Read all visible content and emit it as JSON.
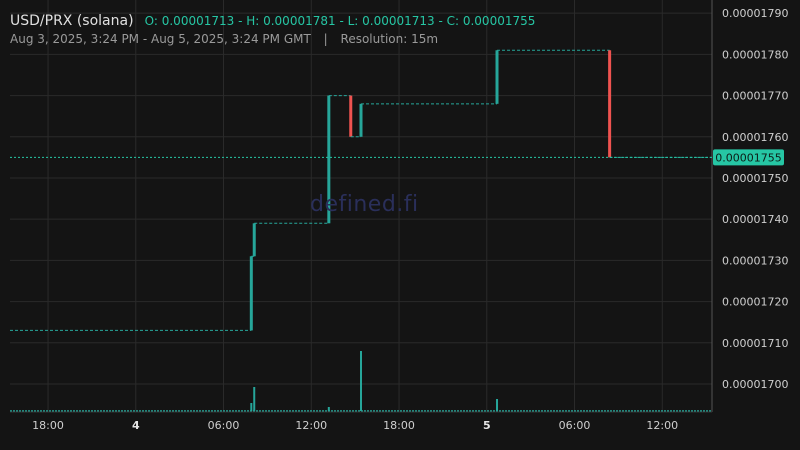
{
  "header": {
    "pair": "USD/PRX (solana)",
    "ohlc": "O: 0.00001713 - H: 0.00001781 - L: 0.00001713 - C: 0.00001755",
    "date_range": "Aug 3, 2025, 3:24 PM - Aug 5, 2025, 3:24 PM GMT",
    "separator": "|",
    "resolution": "Resolution: 15m"
  },
  "watermark": "defined.fi",
  "colors": {
    "up": "#26a69a",
    "down": "#ef5350",
    "last_price": "#26c6a4",
    "grid": "#2a2a2a",
    "background": "#141414"
  },
  "chart_data": {
    "type": "candlestick",
    "y_unit": "price",
    "ylim": [
      1.6932e-05,
      1.7932e-05
    ],
    "y_ticks": [
      "0.00001700",
      "0.00001710",
      "0.00001720",
      "0.00001730",
      "0.00001740",
      "0.00001750",
      "0.00001760",
      "0.00001770",
      "0.00001780",
      "0.00001790"
    ],
    "x_ticks": [
      {
        "label": "18:00",
        "hour": 18,
        "bold": false
      },
      {
        "label": "4",
        "hour": 24,
        "bold": true
      },
      {
        "label": "06:00",
        "hour": 30,
        "bold": false
      },
      {
        "label": "12:00",
        "hour": 36,
        "bold": false
      },
      {
        "label": "18:00",
        "hour": 42,
        "bold": false
      },
      {
        "label": "5",
        "hour": 48,
        "bold": true
      },
      {
        "label": "06:00",
        "hour": 54,
        "bold": false
      },
      {
        "label": "12:00",
        "hour": 60,
        "bold": false
      }
    ],
    "x_range_hours": [
      15.4,
      63.4
    ],
    "last_price": "0.00001755",
    "grid": true,
    "candles": [
      {
        "hour": 15.4,
        "open": 1.713e-05,
        "close": 1.713e-05
      },
      {
        "hour": 31.9,
        "open": 1.713e-05,
        "close": 1.731e-05
      },
      {
        "hour": 32.1,
        "open": 1.731e-05,
        "close": 1.739e-05
      },
      {
        "hour": 37.2,
        "open": 1.739e-05,
        "close": 1.77e-05
      },
      {
        "hour": 38.7,
        "open": 1.77e-05,
        "close": 1.76e-05
      },
      {
        "hour": 39.4,
        "open": 1.76e-05,
        "close": 1.768e-05
      },
      {
        "hour": 48.7,
        "open": 1.768e-05,
        "close": 1.781e-05
      },
      {
        "hour": 56.4,
        "open": 1.781e-05,
        "close": 1.755e-05
      },
      {
        "hour": 63.4,
        "open": 1.755e-05,
        "close": 1.755e-05
      }
    ],
    "volume": [
      {
        "hour": 31.9,
        "value": 2
      },
      {
        "hour": 32.1,
        "value": 6
      },
      {
        "hour": 37.2,
        "value": 1
      },
      {
        "hour": 39.4,
        "value": 15
      },
      {
        "hour": 48.7,
        "value": 3
      }
    ]
  }
}
